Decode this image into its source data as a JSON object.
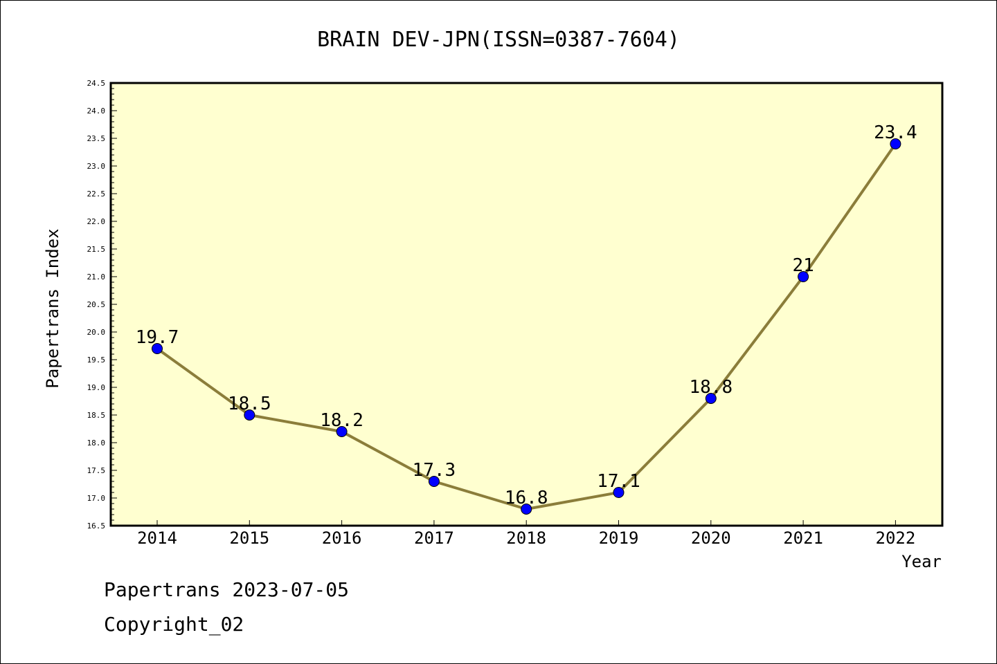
{
  "chart_data": {
    "type": "line",
    "title": "BRAIN DEV-JPN(ISSN=0387-7604)",
    "xlabel": "Year",
    "ylabel": "Papertrans Index",
    "categories": [
      "2014",
      "2015",
      "2016",
      "2017",
      "2018",
      "2019",
      "2020",
      "2021",
      "2022"
    ],
    "series": [
      {
        "values": [
          19.7,
          18.5,
          18.2,
          17.3,
          16.8,
          17.1,
          18.8,
          21.0,
          23.4
        ],
        "labels": [
          "19.7",
          "18.5",
          "18.2",
          "17.3",
          "16.8",
          "17.1",
          "18.8",
          "21",
          "23.4"
        ]
      }
    ],
    "ylim": [
      16.5,
      24.5
    ],
    "yticks": [
      "16.5",
      "17.0",
      "17.5",
      "18.0",
      "18.5",
      "19.0",
      "19.5",
      "20.0",
      "20.5",
      "21.0",
      "21.5",
      "22.0",
      "22.5",
      "23.0",
      "23.5",
      "24.0",
      "24.5"
    ],
    "grid": false,
    "colors": {
      "plot_background": "#ffffd0",
      "line": "#8b7d3a",
      "marker": "#0000ff"
    }
  },
  "footer": {
    "source": "Papertrans 2023-07-05",
    "copyright": "Copyright_02"
  }
}
